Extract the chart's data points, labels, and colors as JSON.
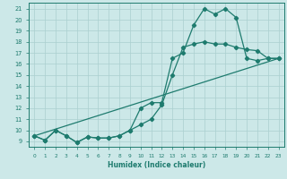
{
  "xlabel": "Humidex (Indice chaleur)",
  "bg_color": "#cce8e8",
  "grid_color": "#aacfcf",
  "line_color": "#1e7b6e",
  "xlim": [
    -0.5,
    23.5
  ],
  "ylim": [
    8.5,
    21.5
  ],
  "xticks": [
    0,
    1,
    2,
    3,
    4,
    5,
    6,
    7,
    8,
    9,
    10,
    11,
    12,
    13,
    14,
    15,
    16,
    17,
    18,
    19,
    20,
    21,
    22,
    23
  ],
  "yticks": [
    9,
    10,
    11,
    12,
    13,
    14,
    15,
    16,
    17,
    18,
    19,
    20,
    21
  ],
  "line1_x": [
    0,
    1,
    2,
    3,
    4,
    5,
    6,
    7,
    8,
    9,
    10,
    11,
    12,
    13,
    14,
    15,
    16,
    17,
    18,
    19,
    20,
    21,
    22,
    23
  ],
  "line1_y": [
    9.5,
    9.1,
    10.0,
    9.5,
    8.9,
    9.4,
    9.3,
    9.3,
    9.5,
    10.0,
    12.0,
    12.5,
    12.5,
    16.5,
    17.0,
    19.5,
    21.0,
    20.5,
    21.0,
    20.2,
    16.5,
    16.3,
    16.5,
    16.5
  ],
  "line2_x": [
    0,
    1,
    2,
    3,
    4,
    5,
    6,
    7,
    8,
    9,
    10,
    11,
    12,
    13,
    14,
    15,
    16,
    17,
    18,
    19,
    20,
    21,
    22,
    23
  ],
  "line2_y": [
    9.5,
    9.1,
    10.0,
    9.5,
    8.9,
    9.4,
    9.3,
    9.3,
    9.5,
    10.0,
    10.5,
    11.0,
    12.3,
    15.0,
    17.5,
    17.8,
    18.0,
    17.8,
    17.8,
    17.5,
    17.3,
    17.2,
    16.5,
    16.5
  ],
  "line3_x": [
    0,
    23
  ],
  "line3_y": [
    9.5,
    16.5
  ],
  "markersize": 2.2,
  "linewidth": 0.9
}
